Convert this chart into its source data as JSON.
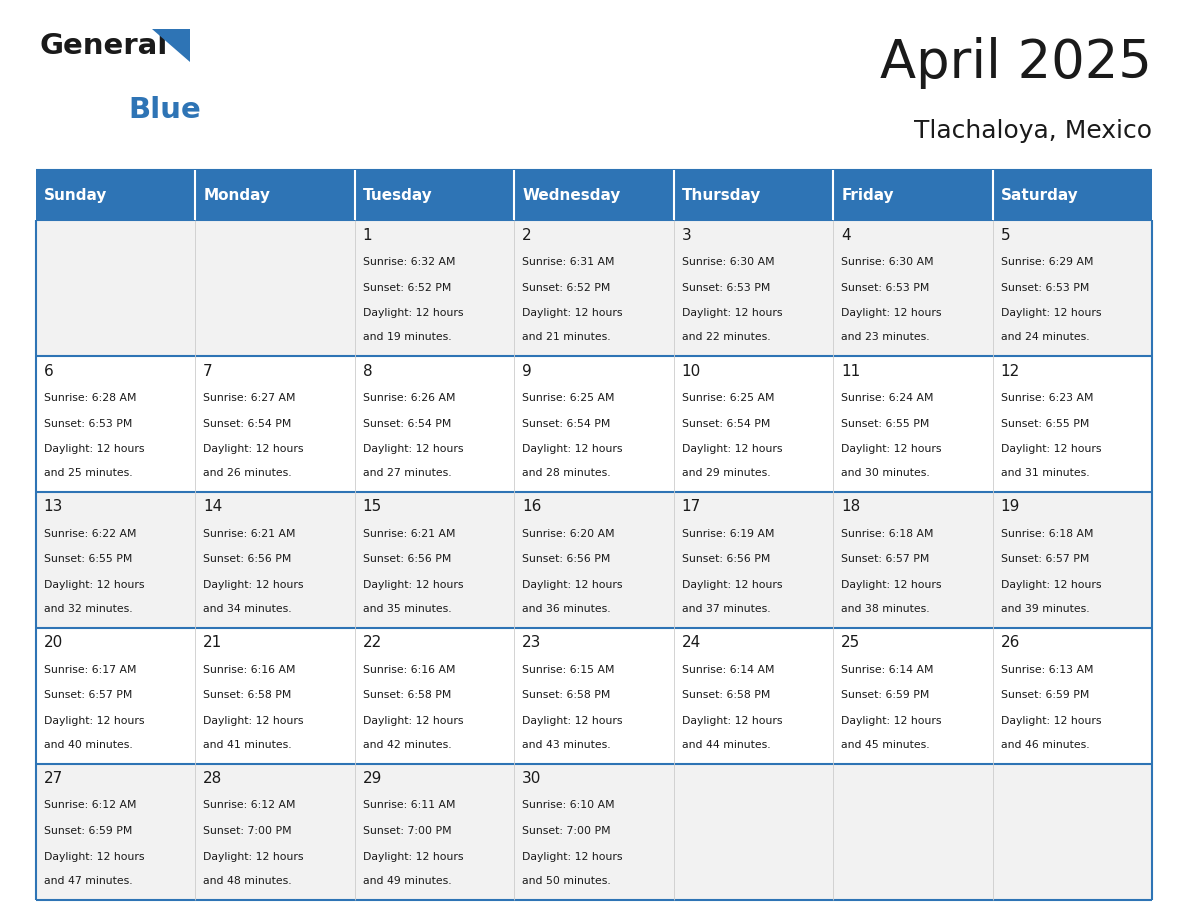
{
  "title": "April 2025",
  "subtitle": "Tlachaloya, Mexico",
  "header_color": "#2E74B5",
  "header_text_color": "#FFFFFF",
  "cell_bg_even": "#F2F2F2",
  "cell_bg_odd": "#FFFFFF",
  "border_color": "#2E74B5",
  "days_of_week": [
    "Sunday",
    "Monday",
    "Tuesday",
    "Wednesday",
    "Thursday",
    "Friday",
    "Saturday"
  ],
  "weeks": [
    [
      {
        "day": "",
        "sunrise": "",
        "sunset": "",
        "daylight": ""
      },
      {
        "day": "",
        "sunrise": "",
        "sunset": "",
        "daylight": ""
      },
      {
        "day": "1",
        "sunrise": "Sunrise: 6:32 AM",
        "sunset": "Sunset: 6:52 PM",
        "daylight": "Daylight: 12 hours\nand 19 minutes."
      },
      {
        "day": "2",
        "sunrise": "Sunrise: 6:31 AM",
        "sunset": "Sunset: 6:52 PM",
        "daylight": "Daylight: 12 hours\nand 21 minutes."
      },
      {
        "day": "3",
        "sunrise": "Sunrise: 6:30 AM",
        "sunset": "Sunset: 6:53 PM",
        "daylight": "Daylight: 12 hours\nand 22 minutes."
      },
      {
        "day": "4",
        "sunrise": "Sunrise: 6:30 AM",
        "sunset": "Sunset: 6:53 PM",
        "daylight": "Daylight: 12 hours\nand 23 minutes."
      },
      {
        "day": "5",
        "sunrise": "Sunrise: 6:29 AM",
        "sunset": "Sunset: 6:53 PM",
        "daylight": "Daylight: 12 hours\nand 24 minutes."
      }
    ],
    [
      {
        "day": "6",
        "sunrise": "Sunrise: 6:28 AM",
        "sunset": "Sunset: 6:53 PM",
        "daylight": "Daylight: 12 hours\nand 25 minutes."
      },
      {
        "day": "7",
        "sunrise": "Sunrise: 6:27 AM",
        "sunset": "Sunset: 6:54 PM",
        "daylight": "Daylight: 12 hours\nand 26 minutes."
      },
      {
        "day": "8",
        "sunrise": "Sunrise: 6:26 AM",
        "sunset": "Sunset: 6:54 PM",
        "daylight": "Daylight: 12 hours\nand 27 minutes."
      },
      {
        "day": "9",
        "sunrise": "Sunrise: 6:25 AM",
        "sunset": "Sunset: 6:54 PM",
        "daylight": "Daylight: 12 hours\nand 28 minutes."
      },
      {
        "day": "10",
        "sunrise": "Sunrise: 6:25 AM",
        "sunset": "Sunset: 6:54 PM",
        "daylight": "Daylight: 12 hours\nand 29 minutes."
      },
      {
        "day": "11",
        "sunrise": "Sunrise: 6:24 AM",
        "sunset": "Sunset: 6:55 PM",
        "daylight": "Daylight: 12 hours\nand 30 minutes."
      },
      {
        "day": "12",
        "sunrise": "Sunrise: 6:23 AM",
        "sunset": "Sunset: 6:55 PM",
        "daylight": "Daylight: 12 hours\nand 31 minutes."
      }
    ],
    [
      {
        "day": "13",
        "sunrise": "Sunrise: 6:22 AM",
        "sunset": "Sunset: 6:55 PM",
        "daylight": "Daylight: 12 hours\nand 32 minutes."
      },
      {
        "day": "14",
        "sunrise": "Sunrise: 6:21 AM",
        "sunset": "Sunset: 6:56 PM",
        "daylight": "Daylight: 12 hours\nand 34 minutes."
      },
      {
        "day": "15",
        "sunrise": "Sunrise: 6:21 AM",
        "sunset": "Sunset: 6:56 PM",
        "daylight": "Daylight: 12 hours\nand 35 minutes."
      },
      {
        "day": "16",
        "sunrise": "Sunrise: 6:20 AM",
        "sunset": "Sunset: 6:56 PM",
        "daylight": "Daylight: 12 hours\nand 36 minutes."
      },
      {
        "day": "17",
        "sunrise": "Sunrise: 6:19 AM",
        "sunset": "Sunset: 6:56 PM",
        "daylight": "Daylight: 12 hours\nand 37 minutes."
      },
      {
        "day": "18",
        "sunrise": "Sunrise: 6:18 AM",
        "sunset": "Sunset: 6:57 PM",
        "daylight": "Daylight: 12 hours\nand 38 minutes."
      },
      {
        "day": "19",
        "sunrise": "Sunrise: 6:18 AM",
        "sunset": "Sunset: 6:57 PM",
        "daylight": "Daylight: 12 hours\nand 39 minutes."
      }
    ],
    [
      {
        "day": "20",
        "sunrise": "Sunrise: 6:17 AM",
        "sunset": "Sunset: 6:57 PM",
        "daylight": "Daylight: 12 hours\nand 40 minutes."
      },
      {
        "day": "21",
        "sunrise": "Sunrise: 6:16 AM",
        "sunset": "Sunset: 6:58 PM",
        "daylight": "Daylight: 12 hours\nand 41 minutes."
      },
      {
        "day": "22",
        "sunrise": "Sunrise: 6:16 AM",
        "sunset": "Sunset: 6:58 PM",
        "daylight": "Daylight: 12 hours\nand 42 minutes."
      },
      {
        "day": "23",
        "sunrise": "Sunrise: 6:15 AM",
        "sunset": "Sunset: 6:58 PM",
        "daylight": "Daylight: 12 hours\nand 43 minutes."
      },
      {
        "day": "24",
        "sunrise": "Sunrise: 6:14 AM",
        "sunset": "Sunset: 6:58 PM",
        "daylight": "Daylight: 12 hours\nand 44 minutes."
      },
      {
        "day": "25",
        "sunrise": "Sunrise: 6:14 AM",
        "sunset": "Sunset: 6:59 PM",
        "daylight": "Daylight: 12 hours\nand 45 minutes."
      },
      {
        "day": "26",
        "sunrise": "Sunrise: 6:13 AM",
        "sunset": "Sunset: 6:59 PM",
        "daylight": "Daylight: 12 hours\nand 46 minutes."
      }
    ],
    [
      {
        "day": "27",
        "sunrise": "Sunrise: 6:12 AM",
        "sunset": "Sunset: 6:59 PM",
        "daylight": "Daylight: 12 hours\nand 47 minutes."
      },
      {
        "day": "28",
        "sunrise": "Sunrise: 6:12 AM",
        "sunset": "Sunset: 7:00 PM",
        "daylight": "Daylight: 12 hours\nand 48 minutes."
      },
      {
        "day": "29",
        "sunrise": "Sunrise: 6:11 AM",
        "sunset": "Sunset: 7:00 PM",
        "daylight": "Daylight: 12 hours\nand 49 minutes."
      },
      {
        "day": "30",
        "sunrise": "Sunrise: 6:10 AM",
        "sunset": "Sunset: 7:00 PM",
        "daylight": "Daylight: 12 hours\nand 50 minutes."
      },
      {
        "day": "",
        "sunrise": "",
        "sunset": "",
        "daylight": ""
      },
      {
        "day": "",
        "sunrise": "",
        "sunset": "",
        "daylight": ""
      },
      {
        "day": "",
        "sunrise": "",
        "sunset": "",
        "daylight": ""
      }
    ]
  ]
}
